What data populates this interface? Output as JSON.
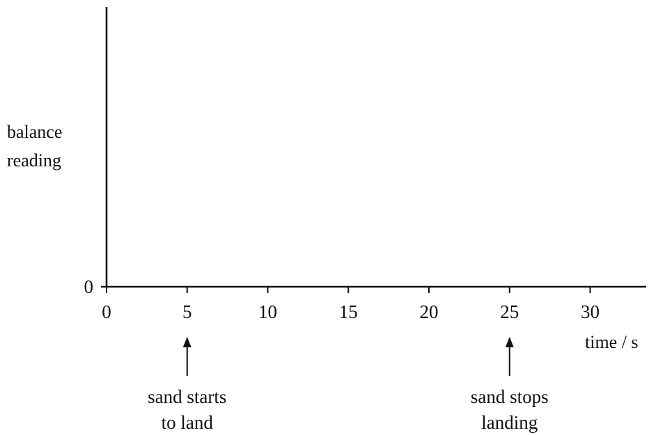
{
  "chart_data": {
    "type": "line",
    "title": "",
    "xlabel": "time / s",
    "ylabel": [
      "balance",
      "reading"
    ],
    "xlim": [
      0,
      33
    ],
    "x_ticks": [
      0,
      5,
      10,
      15,
      20,
      25,
      30
    ],
    "y_ticks": [
      0
    ],
    "grid": false,
    "series": [],
    "annotations": [
      {
        "x": 5,
        "text": [
          "sand starts",
          "to land"
        ]
      },
      {
        "x": 25,
        "text": [
          "sand stops",
          "landing"
        ]
      }
    ]
  }
}
